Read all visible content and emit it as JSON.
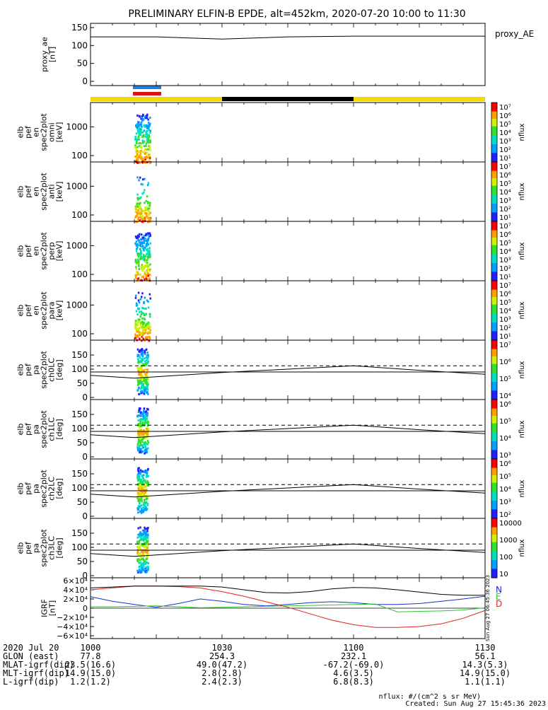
{
  "title": "PRELIMINARY ELFIN-B EPDE, alt=452km, 2020-07-20 10:00 to 11:30",
  "colors": {
    "bar_yellow": "#f5d800",
    "bar_black": "#000000",
    "bar_blue": "#1e7fe0",
    "bar_red": "#e01010",
    "geo_N": "#1a2fd0",
    "geo_E": "#2ec82e",
    "geo_D": "#e02020"
  },
  "chart_data": [
    {
      "type": "line",
      "panel": "proxy_ae",
      "ylabel": [
        "proxy_ae",
        "[nT]"
      ],
      "legend": "proxy_AE",
      "ylim": [
        0,
        150
      ],
      "yticks": [
        "150",
        "100",
        "50",
        "0"
      ],
      "x_minutes": [
        0,
        15,
        30,
        45,
        60,
        75,
        90
      ],
      "values": [
        124,
        124,
        118,
        124,
        126,
        126,
        126
      ]
    },
    {
      "type": "heatmap",
      "panel": "en_spec_omni",
      "ylabel": [
        "elb",
        "pef",
        "en",
        "spec2plot",
        "omni",
        "[keV]"
      ],
      "scale": "log",
      "ylim": [
        60,
        7000
      ],
      "yticks": [
        "1000",
        "100"
      ],
      "colorbar_label": "nflux",
      "colorbar_ticks": [
        "10⁷",
        "10⁶",
        "10⁵",
        "10⁴",
        "10³",
        "10²",
        "10¹"
      ]
    },
    {
      "type": "heatmap",
      "panel": "en_spec_anti",
      "ylabel": [
        "elb",
        "pef",
        "en",
        "spec2plot",
        "anti",
        "[keV]"
      ],
      "scale": "log",
      "ylim": [
        60,
        7000
      ],
      "yticks": [
        "1000",
        "100"
      ],
      "colorbar_label": "nflux",
      "colorbar_ticks": [
        "10⁷",
        "10⁶",
        "10⁵",
        "10⁴",
        "10³",
        "10²",
        "10¹"
      ]
    },
    {
      "type": "heatmap",
      "panel": "en_spec_perp",
      "ylabel": [
        "elb",
        "pef",
        "en",
        "spec2plot",
        "perp",
        "[keV]"
      ],
      "scale": "log",
      "ylim": [
        60,
        7000
      ],
      "yticks": [
        "1000",
        "100"
      ],
      "colorbar_label": "nflux",
      "colorbar_ticks": [
        "10⁷",
        "10⁶",
        "10⁵",
        "10⁴",
        "10³",
        "10²",
        "10¹"
      ]
    },
    {
      "type": "heatmap",
      "panel": "en_spec_para",
      "ylabel": [
        "elb",
        "pef",
        "en",
        "spec2plot",
        "para",
        "[keV]"
      ],
      "scale": "log",
      "ylim": [
        60,
        7000
      ],
      "yticks": [
        "1000",
        "100"
      ],
      "colorbar_label": "nflux",
      "colorbar_ticks": [
        "10⁷",
        "10⁶",
        "10⁵",
        "10⁴",
        "10³",
        "10²",
        "10¹"
      ]
    },
    {
      "type": "heatmap",
      "panel": "pa_spec_ch0LC",
      "ylabel": [
        "elb",
        "pef",
        "pa",
        "spec2plot",
        "ch0LC",
        "[deg]"
      ],
      "ylim": [
        0,
        180
      ],
      "yticks": [
        "150",
        "100",
        "50",
        "0"
      ],
      "colorbar_label": "nflux",
      "colorbar_ticks": [
        "10⁷",
        "10⁶",
        "10⁵",
        "10⁴"
      ]
    },
    {
      "type": "heatmap",
      "panel": "pa_spec_ch1LC",
      "ylabel": [
        "elb",
        "pef",
        "pa",
        "spec2plot",
        "ch1LC",
        "[deg]"
      ],
      "ylim": [
        0,
        180
      ],
      "yticks": [
        "150",
        "100",
        "50",
        "0"
      ],
      "colorbar_label": "nflux",
      "colorbar_ticks": [
        "10⁶",
        "10⁵",
        "10⁴",
        "10³"
      ]
    },
    {
      "type": "heatmap",
      "panel": "pa_spec_ch2LC",
      "ylabel": [
        "elb",
        "pef",
        "pa",
        "spec2plot",
        "ch2LC",
        "[deg]"
      ],
      "ylim": [
        0,
        180
      ],
      "yticks": [
        "150",
        "100",
        "50",
        "0"
      ],
      "colorbar_label": "nflux",
      "colorbar_ticks": [
        "10⁶",
        "10⁵",
        "10⁴",
        "10³",
        "10²"
      ]
    },
    {
      "type": "heatmap",
      "panel": "pa_spec_ch3LC",
      "ylabel": [
        "elb",
        "pef",
        "pa",
        "spec2plot",
        "ch3LC",
        "[deg]"
      ],
      "ylim": [
        0,
        180
      ],
      "yticks": [
        "150",
        "100",
        "50",
        "0"
      ],
      "colorbar_label": "nflux",
      "colorbar_ticks": [
        "10000",
        "1000",
        "100",
        "10"
      ]
    },
    {
      "type": "line",
      "panel": "igrf",
      "ylabel": [
        "IGRF",
        "[nT]"
      ],
      "ylim": [
        -60000,
        60000
      ],
      "yticks": [
        "6×10⁴",
        "4×10⁴",
        "2×10⁴",
        "0",
        "−2×10⁴",
        "−4×10⁴",
        "−6×10⁴"
      ],
      "legend": [
        "N",
        "E",
        "D"
      ],
      "x_minutes": [
        0,
        5,
        10,
        15,
        20,
        25,
        30,
        35,
        40,
        45,
        50,
        55,
        60,
        65,
        70,
        75,
        80,
        85,
        90
      ],
      "series": [
        {
          "name": "N",
          "values": [
            25000,
            15000,
            8000,
            2000,
            10000,
            20000,
            15000,
            8000,
            5000,
            8000,
            12000,
            14000,
            12000,
            8000,
            8000,
            10000,
            15000,
            20000,
            26000
          ]
        },
        {
          "name": "E",
          "values": [
            3000,
            3000,
            4000,
            5000,
            3000,
            1000,
            2000,
            3000,
            4000,
            5000,
            6000,
            7000,
            8000,
            9000,
            -8000,
            -7000,
            -6000,
            -4000,
            1000
          ]
        },
        {
          "name": "D",
          "values": [
            40000,
            44000,
            48000,
            48000,
            47000,
            44000,
            36000,
            26000,
            14000,
            2000,
            -12000,
            -26000,
            -36000,
            -42000,
            -42000,
            -40000,
            -34000,
            -22000,
            -5000
          ]
        },
        {
          "name": "Total",
          "values": [
            44000,
            46000,
            48000,
            48000,
            48000,
            48000,
            46000,
            40000,
            34000,
            33000,
            36000,
            42000,
            45000,
            44000,
            40000,
            35000,
            30000,
            28000,
            28000
          ]
        }
      ]
    }
  ],
  "pa_lines": {
    "dashed_deg": 112,
    "solid_deg": 90,
    "curve_minutes": [
      0,
      10,
      20,
      30,
      45,
      60,
      75,
      90
    ],
    "curve_deg": [
      78,
      68,
      78,
      88,
      100,
      112,
      96,
      82
    ]
  },
  "timeline": {
    "x_ticks": [
      "1000",
      "1030",
      "1100",
      "1130"
    ]
  },
  "footer": {
    "rows": [
      {
        "label": "2020 Jul 20",
        "vals": [
          "1000",
          "1030",
          "1100",
          "1130"
        ]
      },
      {
        "label": "GLON (east)",
        "vals": [
          "77.8",
          "254.3",
          "232.1",
          "56.1"
        ]
      },
      {
        "label": "MLAT-igrf(dip)",
        "vals": [
          "23.5(16.6)",
          "49.0(47.2)",
          "-67.2(-69.0)",
          "14.3(5.3)"
        ]
      },
      {
        "label": "MLT-igrf(dip)",
        "vals": [
          "14.9(15.0)",
          "2.8(2.8)",
          "4.6(3.5)",
          "14.9(15.0)"
        ]
      },
      {
        "label": "L-igrf(dip)",
        "vals": [
          "1.2(1.2)",
          "2.4(2.3)",
          "6.8(8.3)",
          "1.1(1.1)"
        ]
      }
    ],
    "nflux_note": "nflux: #/(cm^2 s sr MeV)",
    "created": "Created: Sun Aug 27 15:45:36 2023",
    "vertical_stamp": "Sun Aug 27 06:45:36 2023"
  }
}
